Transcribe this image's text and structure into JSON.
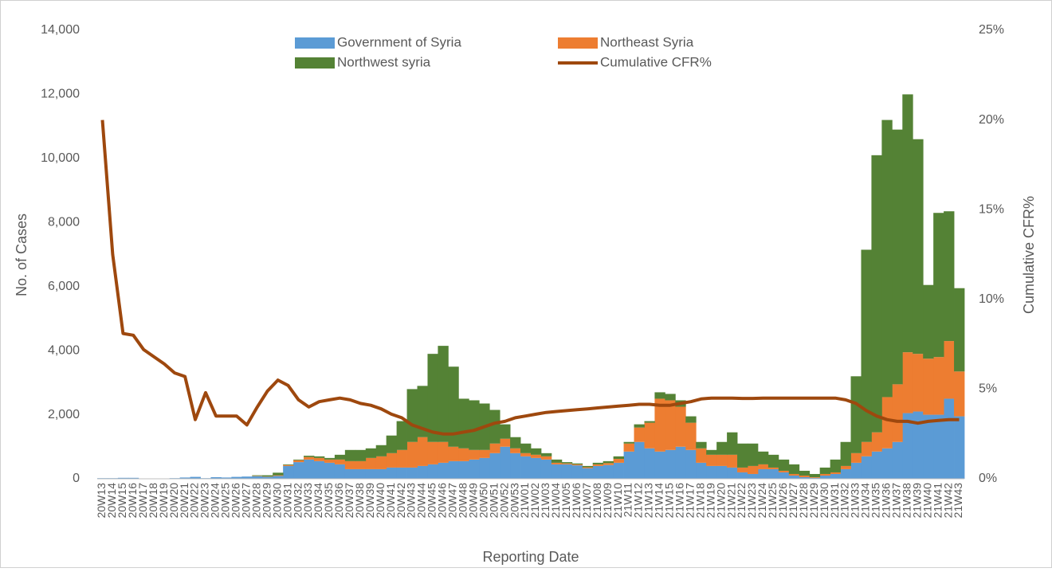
{
  "chart_data": {
    "type": "bar",
    "stacked": true,
    "categories": [
      "20W13",
      "20W14",
      "20W15",
      "20W16",
      "20W17",
      "20W18",
      "20W19",
      "20W20",
      "20W21",
      "20W22",
      "20W23",
      "20W24",
      "20W25",
      "20W26",
      "20W27",
      "20W28",
      "20W29",
      "20W30",
      "20W31",
      "20W32",
      "20W33",
      "20W34",
      "20W35",
      "20W36",
      "20W37",
      "20W38",
      "20W39",
      "20W40",
      "20W41",
      "20W42",
      "20W43",
      "20W44",
      "20W45",
      "20W46",
      "20W47",
      "20W48",
      "20W49",
      "20W50",
      "20W51",
      "20W52",
      "20W53",
      "21W01",
      "21W02",
      "21W03",
      "21W04",
      "21W05",
      "21W06",
      "21W07",
      "21W08",
      "21W09",
      "21W10",
      "21W11",
      "21W12",
      "21W13",
      "21W14",
      "21W15",
      "21W16",
      "21W17",
      "21W18",
      "21W19",
      "21W20",
      "21W21",
      "21W22",
      "21W23",
      "21W24",
      "21W25",
      "21W26",
      "21W27",
      "21W28",
      "21W29",
      "21W30",
      "21W31",
      "21W32",
      "21W33",
      "21W34",
      "21W35",
      "21W36",
      "21W37",
      "21W38",
      "21W39",
      "21W40",
      "21W41",
      "21W42",
      "21W43"
    ],
    "series": [
      {
        "name": "Government of Syria",
        "color": "#5b9bd5",
        "values": [
          20,
          20,
          30,
          30,
          10,
          10,
          10,
          20,
          40,
          60,
          20,
          50,
          40,
          60,
          70,
          80,
          60,
          90,
          400,
          520,
          600,
          550,
          500,
          450,
          300,
          300,
          300,
          300,
          350,
          350,
          350,
          400,
          450,
          500,
          550,
          550,
          600,
          650,
          800,
          1000,
          800,
          700,
          650,
          600,
          450,
          450,
          420,
          330,
          400,
          430,
          500,
          850,
          1150,
          950,
          850,
          900,
          1000,
          900,
          500,
          400,
          400,
          350,
          200,
          150,
          300,
          300,
          200,
          100,
          50,
          30,
          100,
          150,
          300,
          500,
          700,
          850,
          950,
          1150,
          2050,
          2100,
          2000,
          2000,
          2500,
          1950
        ]
      },
      {
        "name": "Northeast Syria",
        "color": "#ed7d31",
        "values": [
          0,
          0,
          0,
          0,
          0,
          0,
          0,
          0,
          0,
          0,
          0,
          0,
          0,
          0,
          0,
          10,
          10,
          20,
          30,
          60,
          80,
          100,
          100,
          150,
          250,
          250,
          350,
          400,
          450,
          550,
          800,
          900,
          700,
          650,
          450,
          400,
          300,
          250,
          300,
          250,
          150,
          100,
          100,
          100,
          50,
          30,
          30,
          30,
          50,
          60,
          120,
          250,
          450,
          800,
          1650,
          1550,
          1250,
          850,
          450,
          350,
          350,
          400,
          150,
          250,
          150,
          50,
          50,
          50,
          50,
          20,
          50,
          50,
          100,
          300,
          450,
          600,
          1600,
          1800,
          1900,
          1800,
          1750,
          1800,
          1800,
          1400
        ]
      },
      {
        "name": "Northwest syria",
        "color": "#548235",
        "values": [
          0,
          0,
          0,
          0,
          0,
          0,
          0,
          0,
          0,
          0,
          0,
          0,
          0,
          0,
          0,
          20,
          40,
          80,
          20,
          20,
          40,
          50,
          50,
          150,
          350,
          350,
          300,
          350,
          550,
          900,
          1650,
          1600,
          2750,
          3000,
          2500,
          1550,
          1550,
          1450,
          1050,
          450,
          350,
          300,
          200,
          100,
          100,
          40,
          30,
          40,
          50,
          60,
          80,
          50,
          100,
          50,
          200,
          200,
          200,
          200,
          200,
          150,
          400,
          700,
          750,
          700,
          400,
          400,
          350,
          300,
          150,
          100,
          200,
          400,
          750,
          2400,
          6000,
          8650,
          8650,
          7950,
          8050,
          6700,
          2300,
          4500,
          4050,
          2600
        ]
      },
      {
        "name": "Cumulative CFR%",
        "color": "#9e480e",
        "type": "line",
        "axis": "y2",
        "values": [
          20,
          12.5,
          8.1,
          8.0,
          7.2,
          6.8,
          6.4,
          5.9,
          5.7,
          3.3,
          4.8,
          3.5,
          3.5,
          3.5,
          3.0,
          4.0,
          4.9,
          5.5,
          5.2,
          4.4,
          4.0,
          4.3,
          4.4,
          4.5,
          4.4,
          4.2,
          4.1,
          3.9,
          3.6,
          3.4,
          3.0,
          2.8,
          2.6,
          2.5,
          2.5,
          2.6,
          2.7,
          2.9,
          3.1,
          3.2,
          3.4,
          3.5,
          3.6,
          3.7,
          3.75,
          3.8,
          3.85,
          3.9,
          3.95,
          4.0,
          4.05,
          4.1,
          4.15,
          4.15,
          4.1,
          4.1,
          4.2,
          4.3,
          4.45,
          4.5,
          4.5,
          4.5,
          4.48,
          4.48,
          4.5,
          4.5,
          4.5,
          4.5,
          4.5,
          4.5,
          4.5,
          4.5,
          4.4,
          4.2,
          3.8,
          3.5,
          3.3,
          3.2,
          3.2,
          3.1,
          3.2,
          3.25,
          3.3,
          3.3
        ]
      }
    ],
    "xlabel": "Reporting Date",
    "ylabel": "No. of Cases",
    "y2label": "Cumulative CFR%",
    "ylim": [
      0,
      14000
    ],
    "yticks": [
      0,
      {
        "value": 2000,
        "label": "2,000"
      },
      {
        "value": 4000,
        "label": "4,000"
      },
      {
        "value": 6000,
        "label": "6,000"
      },
      {
        "value": 8000,
        "label": "8,000"
      },
      {
        "value": 10000,
        "label": "10,000"
      },
      {
        "value": 12000,
        "label": "12,000"
      },
      {
        "value": 14000,
        "label": "14,000"
      }
    ],
    "y2lim": [
      0,
      25
    ],
    "y2ticks": [
      {
        "value": 0,
        "label": "0%"
      },
      {
        "value": 5,
        "label": "5%"
      },
      {
        "value": 10,
        "label": "10%"
      },
      {
        "value": 15,
        "label": "15%"
      },
      {
        "value": 20,
        "label": "20%"
      },
      {
        "value": 25,
        "label": "25%"
      }
    ],
    "legend": "top",
    "grid": false
  }
}
